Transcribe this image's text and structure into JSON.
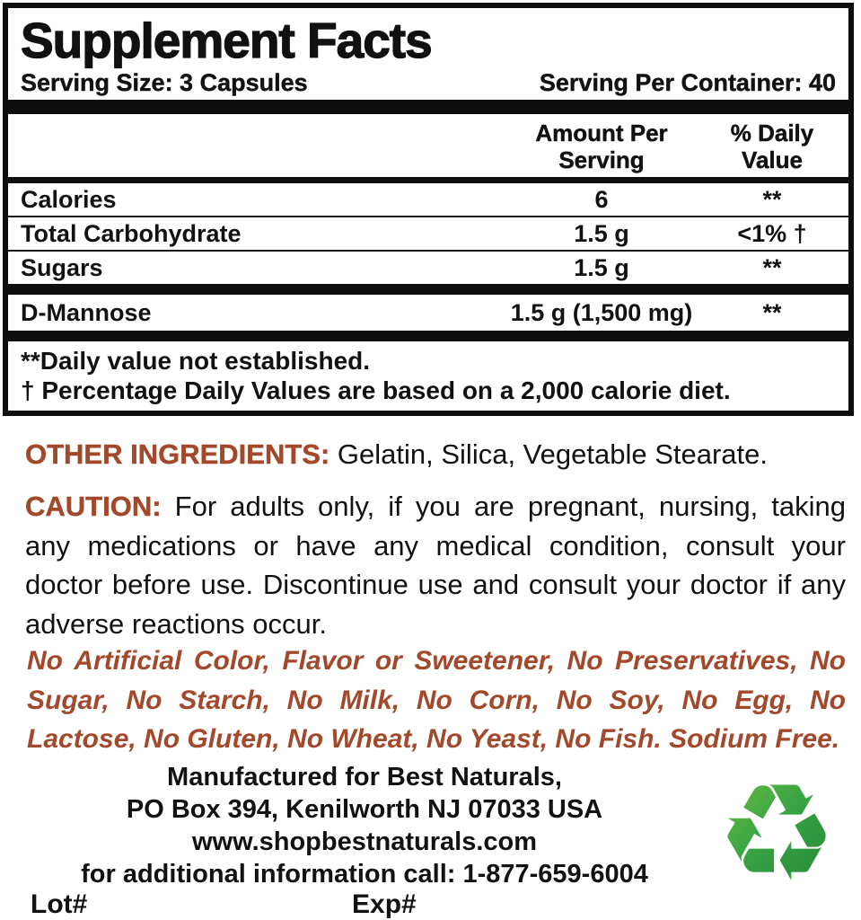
{
  "panel": {
    "title": "Supplement Facts",
    "serving_size": "Serving Size: 3 Capsules",
    "servings_per_container": "Serving Per Container: 40",
    "header": {
      "amount_line1": "Amount Per",
      "amount_line2": "Serving",
      "dv_line1": "% Daily",
      "dv_line2": "Value"
    },
    "rows": [
      {
        "name": "Calories",
        "amount": "6",
        "dv": "**"
      },
      {
        "name": "Total Carbohydrate",
        "amount": "1.5 g",
        "dv": "<1% †"
      },
      {
        "name": "Sugars",
        "amount": "1.5 g",
        "dv": "**"
      },
      {
        "name": "D-Mannose",
        "amount": "1.5 g (1,500 mg)",
        "dv": "**"
      }
    ],
    "footnote1": "**Daily value not established.",
    "footnote2": "† Percentage Daily Values are based on a 2,000 calorie diet."
  },
  "other_ingredients": {
    "label": "OTHER INGREDIENTS:",
    "text": "Gelatin, Silica, Vegetable Stearate."
  },
  "caution": {
    "label": "CAUTION:",
    "text": "For adults only, if you are pregnant, nursing, taking any medications or have any medical condition, consult your doctor before use. Discontinue use and consult your doctor if any adverse reactions occur."
  },
  "claims": "No Artificial Color, Flavor or Sweetener, No Preservatives, No Sugar, No Starch, No Milk, No Corn, No Soy, No Egg, No Lactose, No Gluten, No Wheat, No Yeast, No Fish. Sodium Free.",
  "manufacturer": {
    "line1": "Manufactured for Best Naturals,",
    "line2": "PO Box 394, Kenilworth NJ 07033 USA",
    "website": "www.shopbestnaturals.com",
    "phone_line": "for additional information call: 1-877-659-6004",
    "lot_label": "Lot#",
    "exp_label": "Exp#"
  },
  "footer": {
    "recycle_icon": "recycle-icon",
    "recycle_glyph": "♻"
  },
  "colors": {
    "accent_red": "#A3492B",
    "ink": "#121212",
    "recycle_light": "#8CC63F",
    "recycle_dark": "#1E7A33"
  }
}
